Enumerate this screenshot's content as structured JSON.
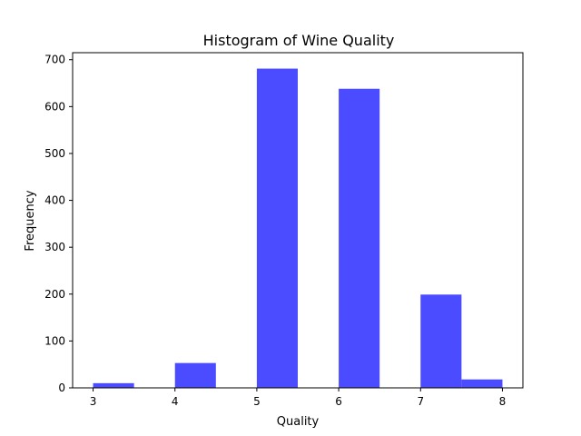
{
  "chart_data": {
    "type": "bar",
    "title": "Histogram of Wine Quality",
    "xlabel": "Quality",
    "ylabel": "Frequency",
    "xlim": [
      2.75,
      8.25
    ],
    "ylim": [
      0,
      715
    ],
    "xticks": [
      3,
      4,
      5,
      6,
      7,
      8
    ],
    "yticks": [
      0,
      100,
      200,
      300,
      400,
      500,
      600,
      700
    ],
    "bins": [
      {
        "start": 3.0,
        "end": 3.5,
        "value": 10
      },
      {
        "start": 3.5,
        "end": 4.0,
        "value": 0
      },
      {
        "start": 4.0,
        "end": 4.5,
        "value": 53
      },
      {
        "start": 4.5,
        "end": 5.0,
        "value": 0
      },
      {
        "start": 5.0,
        "end": 5.5,
        "value": 681
      },
      {
        "start": 5.5,
        "end": 6.0,
        "value": 0
      },
      {
        "start": 6.0,
        "end": 6.5,
        "value": 638
      },
      {
        "start": 6.5,
        "end": 7.0,
        "value": 0
      },
      {
        "start": 7.0,
        "end": 7.5,
        "value": 199
      },
      {
        "start": 7.5,
        "end": 8.0,
        "value": 18
      }
    ],
    "bar_color": "#4b4bff",
    "grid": false
  }
}
